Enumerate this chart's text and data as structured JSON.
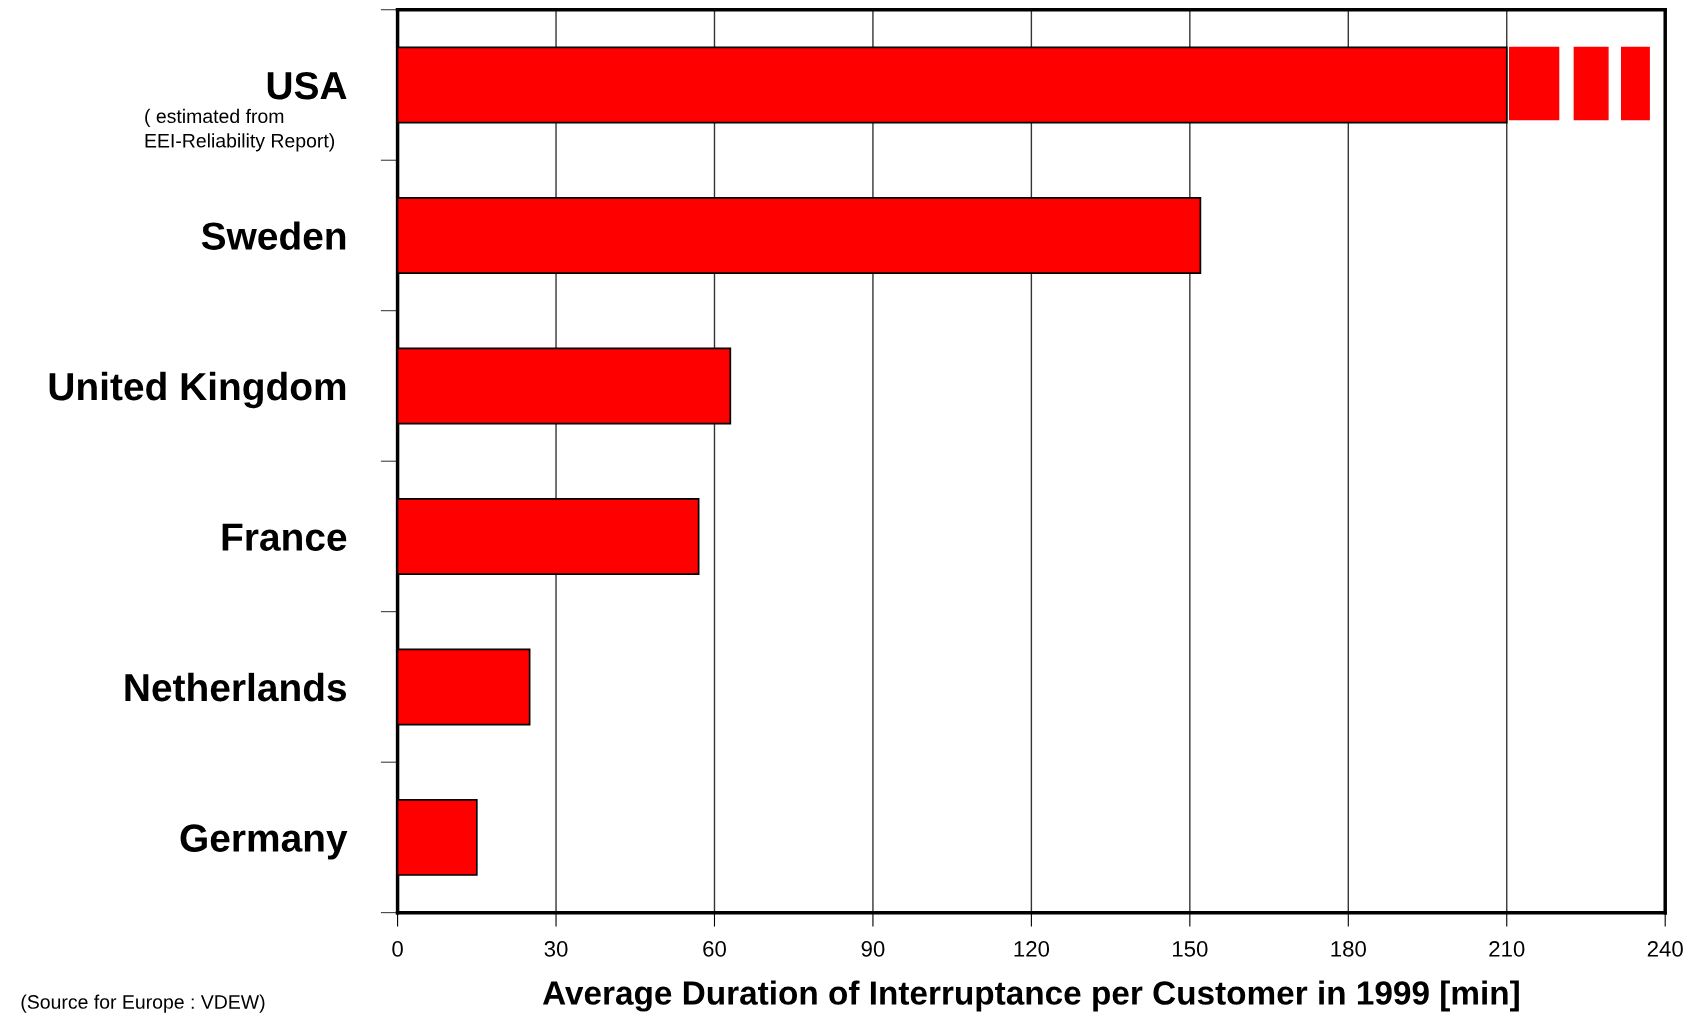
{
  "chart_data": {
    "type": "bar",
    "orientation": "horizontal",
    "categories": [
      "USA",
      "Sweden",
      "United Kingdom",
      "France",
      "Netherlands",
      "Germany"
    ],
    "values": [
      210,
      152,
      63,
      57,
      25,
      15
    ],
    "color": "#ff0000",
    "xlabel": "Average Duration of Interruptance per Customer in 1999 [min]",
    "xlim": [
      0,
      240
    ],
    "xticks": [
      0,
      30,
      60,
      90,
      120,
      150,
      180,
      210,
      240
    ],
    "grid": "x",
    "annotations": [
      "( estimated from\nEEI-Reliability Report)",
      "(Source for Europe : VDEW)"
    ]
  }
}
